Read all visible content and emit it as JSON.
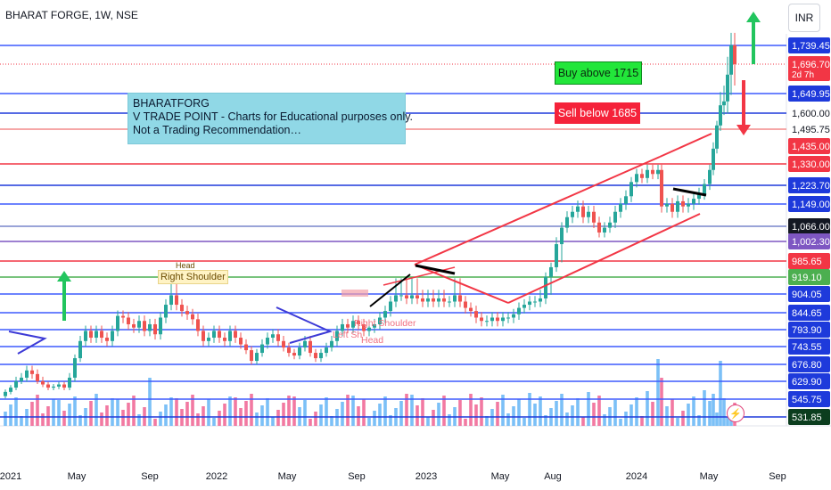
{
  "header": {
    "title": "BHARAT FORGE, 1W, NSE",
    "currency_button": "INR"
  },
  "annotations": {
    "note_lines": [
      "BHARATFORG",
      "V TRADE POINT - Charts for Educational purposes only.",
      "Not a Trading Recommendation…"
    ],
    "buy_label": "Buy above 1715",
    "sell_label": "Sell below 1685",
    "right_shoulder_1": "Right Shoulder",
    "head_1": "Head",
    "left_shoulder_2": "Left Sh",
    "right_shoulder_2": "Right Shoulder",
    "head_2": "Head",
    "lightning_icon": "lightning-icon"
  },
  "colors": {
    "up": "#26a69a",
    "down": "#ef5350",
    "vol_up": "#64b5f6",
    "vol_down": "#f06292",
    "channel": "#f23645",
    "trendline": "#000000",
    "arrow_up": "#22c55e",
    "arrow_down": "#f23645"
  },
  "chart_data": {
    "type": "candlestick",
    "title": "BHARAT FORGE, 1W, NSE",
    "ylabel": "INR",
    "ylim": [
      531.85,
      1760
    ],
    "x_tick_labels": [
      "2021",
      "May",
      "Sep",
      "2022",
      "May",
      "Sep",
      "2023",
      "May",
      "Aug",
      "2024",
      "May",
      "Sep"
    ],
    "price_axis_labels": [
      {
        "value": "1,739.45",
        "color": "#1e3adb",
        "text": "#ffffff"
      },
      {
        "value": "1,696.70",
        "sub": "2d 7h",
        "color": "#f23645",
        "text": "#ffffff"
      },
      {
        "value": "1,649.95",
        "color": "#1e3adb",
        "text": "#ffffff"
      },
      {
        "value": "1,600.00",
        "color": "#ffffff",
        "text": "#131722"
      },
      {
        "value": "1,495.75",
        "color": "#ffffff",
        "text": "#131722"
      },
      {
        "value": "1,435.00",
        "color": "#f23645",
        "text": "#ffffff"
      },
      {
        "value": "1,330.00",
        "color": "#f23645",
        "text": "#ffffff"
      },
      {
        "value": "1,223.70",
        "color": "#1e3adb",
        "text": "#ffffff"
      },
      {
        "value": "1,149.00",
        "color": "#1e3adb",
        "text": "#ffffff"
      },
      {
        "value": "1,066.00",
        "color": "#131722",
        "text": "#ffffff"
      },
      {
        "value": "1,002.30",
        "color": "#7e57c2",
        "text": "#ffffff"
      },
      {
        "value": "985.65",
        "color": "#f23645",
        "text": "#ffffff"
      },
      {
        "value": "919.10",
        "color": "#4caf50",
        "text": "#ffffff"
      },
      {
        "value": "904.05",
        "color": "#1e3adb",
        "text": "#ffffff"
      },
      {
        "value": "844.65",
        "color": "#1e3adb",
        "text": "#ffffff"
      },
      {
        "value": "793.90",
        "color": "#1e3adb",
        "text": "#ffffff"
      },
      {
        "value": "743.55",
        "color": "#1e3adb",
        "text": "#ffffff"
      },
      {
        "value": "676.80",
        "color": "#1e3adb",
        "text": "#ffffff"
      },
      {
        "value": "629.90",
        "color": "#1e3adb",
        "text": "#ffffff"
      },
      {
        "value": "545.75",
        "color": "#1e3adb",
        "text": "#ffffff"
      },
      {
        "value": "531.85",
        "color": "#0b3d1e",
        "text": "#ffffff"
      }
    ],
    "horizontal_levels": [
      {
        "value": 1739.45,
        "color": "#3d5afe"
      },
      {
        "value": 1696.7,
        "color": "#f23645",
        "style": "dotted"
      },
      {
        "value": 1649.95,
        "color": "#3d5afe"
      },
      {
        "value": 1600.0,
        "color": "#1e3adb"
      },
      {
        "value": 1495.75,
        "color": "#f48a8a"
      },
      {
        "value": 1330.0,
        "color": "#f23645"
      },
      {
        "value": 1223.7,
        "color": "#1e3adb"
      },
      {
        "value": 1149.0,
        "color": "#3d5afe"
      },
      {
        "value": 1066.0,
        "color": "#7986cb"
      },
      {
        "value": 1002.3,
        "color": "#7e57c2"
      },
      {
        "value": 985.65,
        "color": "#f23645"
      },
      {
        "value": 919.1,
        "color": "#4caf50"
      },
      {
        "value": 904.05,
        "color": "#3d5afe"
      },
      {
        "value": 844.65,
        "color": "#3d5afe"
      },
      {
        "value": 793.9,
        "color": "#3d5afe"
      },
      {
        "value": 743.55,
        "color": "#3d5afe"
      },
      {
        "value": 676.8,
        "color": "#3d5afe"
      },
      {
        "value": 629.9,
        "color": "#3d5afe"
      },
      {
        "value": 545.75,
        "color": "#3d5afe"
      },
      {
        "value": 531.85,
        "color": "#1e3adb"
      }
    ],
    "series": [
      {
        "name": "close",
        "points": [
          [
            0,
            560
          ],
          [
            6,
            580
          ],
          [
            12,
            600
          ],
          [
            18,
            630
          ],
          [
            24,
            640
          ],
          [
            30,
            660
          ],
          [
            36,
            650
          ],
          [
            42,
            630
          ],
          [
            48,
            615
          ],
          [
            54,
            600
          ],
          [
            60,
            605
          ],
          [
            66,
            615
          ],
          [
            72,
            600
          ],
          [
            78,
            640
          ],
          [
            84,
            700
          ],
          [
            90,
            760
          ],
          [
            96,
            790
          ],
          [
            102,
            770
          ],
          [
            108,
            790
          ],
          [
            114,
            770
          ],
          [
            120,
            760
          ],
          [
            126,
            790
          ],
          [
            132,
            835
          ],
          [
            138,
            830
          ],
          [
            144,
            810
          ],
          [
            150,
            800
          ],
          [
            156,
            820
          ],
          [
            162,
            790
          ],
          [
            168,
            810
          ],
          [
            174,
            780
          ],
          [
            180,
            830
          ],
          [
            186,
            870
          ],
          [
            192,
            900
          ],
          [
            198,
            870
          ],
          [
            204,
            850
          ],
          [
            210,
            840
          ],
          [
            216,
            825
          ],
          [
            222,
            790
          ],
          [
            228,
            760
          ],
          [
            234,
            770
          ],
          [
            240,
            790
          ],
          [
            246,
            770
          ],
          [
            252,
            760
          ],
          [
            258,
            790
          ],
          [
            264,
            770
          ],
          [
            270,
            750
          ],
          [
            276,
            730
          ],
          [
            282,
            690
          ],
          [
            288,
            720
          ],
          [
            294,
            750
          ],
          [
            300,
            770
          ],
          [
            306,
            780
          ],
          [
            312,
            760
          ],
          [
            318,
            740
          ],
          [
            324,
            720
          ],
          [
            330,
            710
          ],
          [
            336,
            740
          ],
          [
            342,
            760
          ],
          [
            348,
            720
          ],
          [
            354,
            700
          ],
          [
            360,
            720
          ],
          [
            366,
            740
          ],
          [
            372,
            760
          ],
          [
            378,
            790
          ],
          [
            384,
            810
          ],
          [
            390,
            800
          ],
          [
            396,
            820
          ],
          [
            402,
            810
          ],
          [
            408,
            790
          ],
          [
            414,
            800
          ],
          [
            420,
            810
          ],
          [
            426,
            830
          ],
          [
            432,
            850
          ],
          [
            438,
            880
          ],
          [
            444,
            900
          ],
          [
            450,
            900
          ],
          [
            456,
            890
          ],
          [
            462,
            900
          ],
          [
            468,
            890
          ],
          [
            474,
            880
          ],
          [
            480,
            890
          ],
          [
            486,
            880
          ],
          [
            492,
            890
          ],
          [
            498,
            880
          ],
          [
            504,
            880
          ],
          [
            510,
            900
          ],
          [
            516,
            880
          ],
          [
            522,
            860
          ],
          [
            528,
            850
          ],
          [
            534,
            830
          ],
          [
            540,
            820
          ],
          [
            546,
            820
          ],
          [
            552,
            830
          ],
          [
            558,
            820
          ],
          [
            564,
            830
          ],
          [
            570,
            830
          ],
          [
            576,
            840
          ],
          [
            582,
            860
          ],
          [
            588,
            870
          ],
          [
            594,
            880
          ],
          [
            600,
            880
          ],
          [
            606,
            890
          ],
          [
            612,
            920
          ],
          [
            618,
            960
          ],
          [
            624,
            1000
          ],
          [
            630,
            1060
          ],
          [
            636,
            1100
          ],
          [
            642,
            1120
          ],
          [
            648,
            1140
          ],
          [
            654,
            1100
          ],
          [
            660,
            1120
          ],
          [
            666,
            1080
          ],
          [
            672,
            1040
          ],
          [
            678,
            1060
          ],
          [
            684,
            1080
          ],
          [
            690,
            1120
          ],
          [
            696,
            1150
          ],
          [
            702,
            1180
          ],
          [
            708,
            1240
          ],
          [
            714,
            1280
          ],
          [
            720,
            1260
          ],
          [
            726,
            1300
          ],
          [
            732,
            1280
          ],
          [
            738,
            1300
          ],
          [
            742,
            1140
          ],
          [
            748,
            1150
          ],
          [
            754,
            1120
          ],
          [
            760,
            1160
          ],
          [
            766,
            1140
          ],
          [
            772,
            1150
          ],
          [
            778,
            1170
          ],
          [
            784,
            1190
          ],
          [
            790,
            1230
          ],
          [
            796,
            1300
          ],
          [
            800,
            1420
          ],
          [
            804,
            1520
          ],
          [
            808,
            1620
          ],
          [
            812,
            1630
          ],
          [
            816,
            1680
          ],
          [
            820,
            1740
          ],
          [
            824,
            1696.7
          ]
        ]
      }
    ],
    "volume_max_bars": 58
  }
}
